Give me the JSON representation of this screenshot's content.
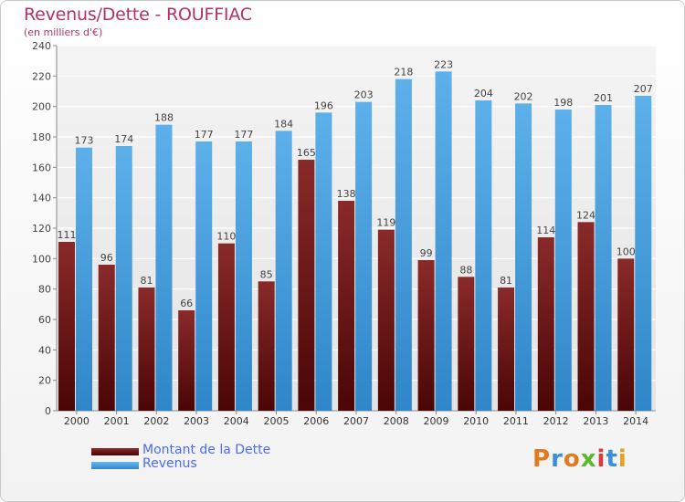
{
  "header": {
    "title": "Revenus/Dette - ROUFFIAC",
    "subtitle": "(en milliers d'€)"
  },
  "legend": {
    "debt": "Montant de la Dette",
    "revenue": "Revenus"
  },
  "logo": {
    "text": "Proxiti"
  },
  "colors": {
    "debt": "#6b1414",
    "revenue": "#4aa3e3",
    "title": "#b0326a",
    "legend_text": "#4a6cf0"
  },
  "chart_data": {
    "type": "bar",
    "title": "Revenus/Dette - ROUFFIAC",
    "subtitle": "(en milliers d'€)",
    "xlabel": "",
    "ylabel": "",
    "ylim": [
      0,
      240
    ],
    "yticks": [
      0,
      20,
      40,
      60,
      80,
      100,
      120,
      140,
      160,
      180,
      200,
      220,
      240
    ],
    "grid": true,
    "legend_position": "bottom-left",
    "categories": [
      "2000",
      "2001",
      "2002",
      "2003",
      "2004",
      "2005",
      "2006",
      "2007",
      "2008",
      "2009",
      "2010",
      "2011",
      "2012",
      "2013",
      "2014"
    ],
    "series": [
      {
        "name": "Montant de la Dette",
        "values": [
          111,
          96,
          81,
          66,
          110,
          85,
          165,
          138,
          119,
          99,
          88,
          81,
          114,
          124,
          100
        ]
      },
      {
        "name": "Revenus",
        "values": [
          173,
          174,
          188,
          177,
          177,
          184,
          196,
          203,
          218,
          223,
          204,
          202,
          198,
          201,
          207
        ]
      }
    ]
  }
}
